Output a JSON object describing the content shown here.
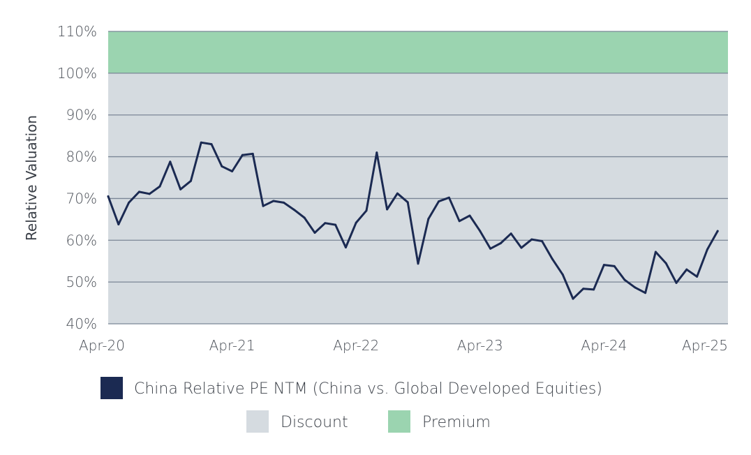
{
  "chart_data": {
    "type": "line",
    "ylabel": "Relative Valuation",
    "xlabel": "",
    "ylim": [
      40,
      110
    ],
    "yticks": [
      40,
      50,
      60,
      70,
      80,
      90,
      100,
      110
    ],
    "ytick_labels": [
      "40%",
      "50%",
      "60%",
      "70%",
      "80%",
      "90%",
      "100%",
      "110%"
    ],
    "xlim": [
      0,
      60
    ],
    "xticks": [
      0,
      12,
      24,
      36,
      48,
      60
    ],
    "xtick_labels": [
      "Apr-20",
      "Apr-21",
      "Apr-22",
      "Apr-23",
      "Apr-24",
      "Apr-25"
    ],
    "bands": [
      {
        "name": "Discount",
        "from": 40,
        "to": 100,
        "color": "#d5dbe0"
      },
      {
        "name": "Premium",
        "from": 100,
        "to": 110,
        "color": "#9bd4b0"
      }
    ],
    "series": [
      {
        "name": "China Relative PE NTM (China vs. Global Developed Equities)",
        "color": "#1b2a52",
        "x": [
          0,
          1,
          2,
          3,
          4,
          5,
          6,
          7,
          8,
          9,
          10,
          11,
          12,
          13,
          14,
          15,
          16,
          17,
          18,
          19,
          20,
          21,
          22,
          23,
          24,
          25,
          26,
          27,
          28,
          29,
          30,
          31,
          32,
          33,
          34,
          35,
          36,
          37,
          38,
          39,
          40,
          41,
          42,
          43,
          44,
          45,
          46,
          47,
          48,
          49,
          50,
          51,
          52,
          53,
          54,
          55,
          56,
          57,
          58,
          59,
          60
        ],
        "values": [
          70.5,
          63.8,
          69,
          71.6,
          71.1,
          72.9,
          78.8,
          72.2,
          74.2,
          83.4,
          83,
          77.7,
          76.5,
          80.4,
          80.7,
          68.2,
          69.4,
          69,
          67.3,
          65.4,
          61.8,
          64.1,
          63.7,
          58.3,
          64.2,
          67.1,
          81,
          67.4,
          71.2,
          69.1,
          54.4,
          65.1,
          69.3,
          70.2,
          64.6,
          65.9,
          62.2,
          58,
          59.3,
          61.6,
          58.2,
          60.2,
          59.8,
          55.5,
          51.8,
          46,
          48.4,
          48.2,
          54.1,
          53.8,
          50.5,
          48.7,
          47.4,
          57.2,
          54.5,
          49.8,
          53,
          51.3,
          57.8,
          62.2,
          null
        ]
      }
    ],
    "legend": [
      {
        "label": "China Relative PE NTM (China vs. Global Developed Equities)",
        "color": "#1b2a52"
      },
      {
        "label": "Discount",
        "color": "#d5dbe0"
      },
      {
        "label": "Premium",
        "color": "#9bd4b0"
      }
    ]
  }
}
